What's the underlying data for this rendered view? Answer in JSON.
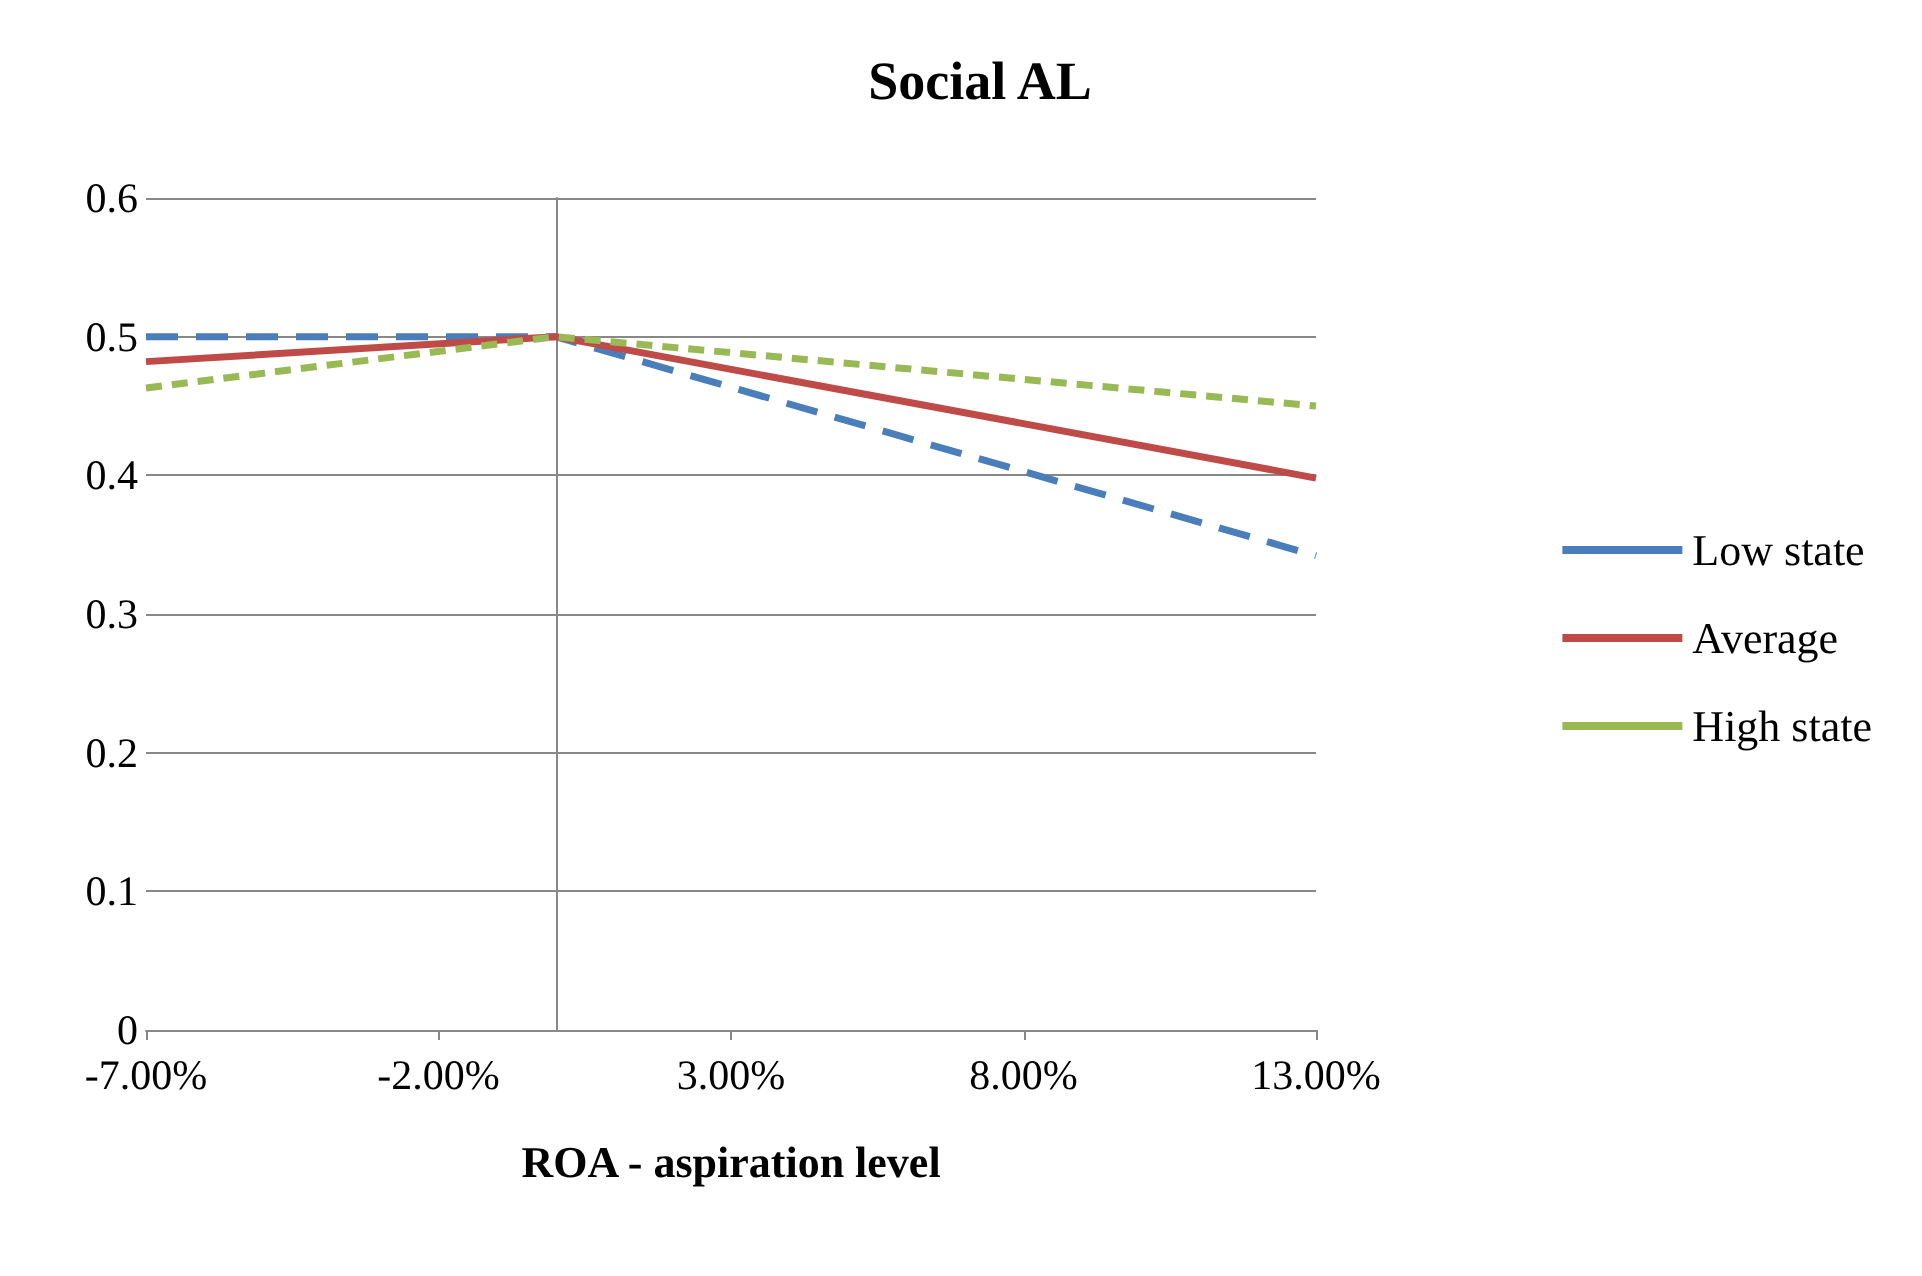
{
  "chart_data": {
    "type": "line",
    "title": "Social AL",
    "xlabel": "ROA - aspiration level",
    "x": [
      -7,
      0,
      13
    ],
    "series": [
      {
        "name": "Low state",
        "color": "#4a7ebb",
        "values": [
          0.5,
          0.5,
          0.342
        ],
        "line_style": "dashed"
      },
      {
        "name": "Average",
        "color": "#be4b48",
        "values": [
          0.482,
          0.5,
          0.398
        ],
        "line_style": "solid"
      },
      {
        "name": "High state",
        "color": "#98b954",
        "values": [
          0.463,
          0.5,
          0.45
        ],
        "line_style": "dotted"
      }
    ],
    "xlim": [
      -7,
      13
    ],
    "xticks": [
      {
        "value": -7,
        "label": "-7.00%"
      },
      {
        "value": -2,
        "label": "-2.00%"
      },
      {
        "value": 3,
        "label": "3.00%"
      },
      {
        "value": 8,
        "label": "8.00%"
      },
      {
        "value": 13,
        "label": "13.00%"
      }
    ],
    "ylim": [
      0,
      0.6
    ],
    "yticks": [
      0,
      0.1,
      0.2,
      0.3,
      0.4,
      0.5,
      0.6
    ],
    "grid": "y",
    "legend": "right",
    "marker": "none"
  }
}
